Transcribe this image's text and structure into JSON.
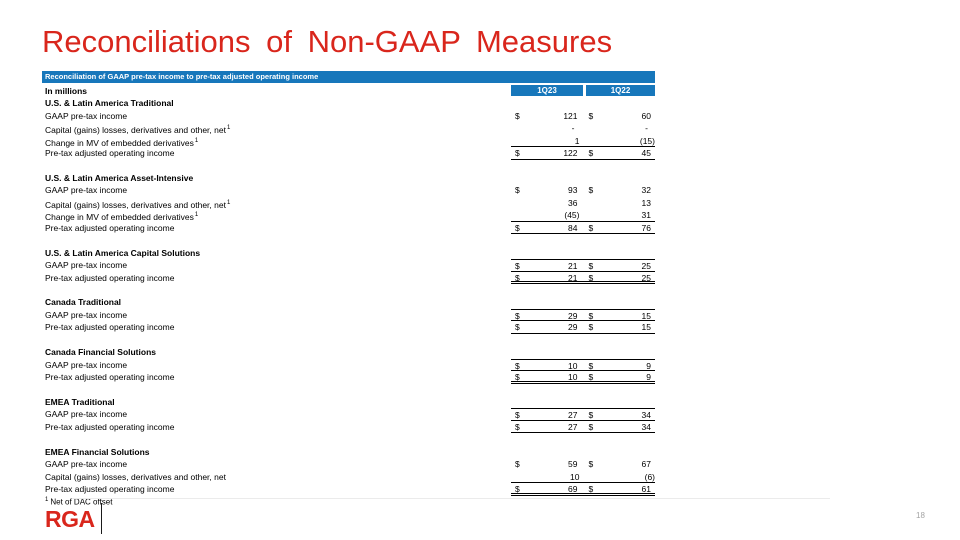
{
  "slide": {
    "title": "Reconciliations of Non-GAAP Measures",
    "page_number": "18",
    "logo_text": "RGA"
  },
  "colors": {
    "accent_red": "#D9261C",
    "header_blue": "#1777BB"
  },
  "table": {
    "header_bar": "Reconciliation of GAAP pre-tax income to pre-tax adjusted operating income",
    "units_label": "In millions",
    "columns": [
      "1Q23",
      "1Q22"
    ],
    "footnote_marker": "1",
    "footnote_text": "Net of DAC offset",
    "sections": [
      {
        "name": "U.S. & Latin America Traditional",
        "rows": [
          {
            "label": "GAAP pre-tax income",
            "sup": false,
            "dollar": true,
            "v1": "121",
            "v2": "60",
            "borders": []
          },
          {
            "label": "Capital (gains) losses, derivatives and other, net",
            "sup": true,
            "dollar": false,
            "v1": "-",
            "v2": "-",
            "borders": []
          },
          {
            "label": "Change in MV of embedded derivatives",
            "sup": true,
            "dollar": false,
            "v1": "1",
            "v2": "(15)",
            "borders": [
              "bottom"
            ]
          },
          {
            "label": "Pre-tax adjusted operating income",
            "sup": false,
            "dollar": true,
            "v1": "122",
            "v2": "45",
            "borders": [
              "bottom"
            ]
          }
        ]
      },
      {
        "name": "U.S. & Latin America Asset-Intensive",
        "rows": [
          {
            "label": "GAAP pre-tax income",
            "sup": false,
            "dollar": true,
            "v1": "93",
            "v2": "32",
            "borders": []
          },
          {
            "label": "Capital (gains) losses, derivatives and other, net",
            "sup": true,
            "dollar": false,
            "v1": "36",
            "v2": "13",
            "borders": []
          },
          {
            "label": "Change in MV of embedded derivatives",
            "sup": true,
            "dollar": false,
            "v1": "(45)",
            "v2": "31",
            "borders": [
              "bottom"
            ]
          },
          {
            "label": "Pre-tax adjusted operating income",
            "sup": false,
            "dollar": true,
            "v1": "84",
            "v2": "76",
            "borders": [
              "bottom"
            ]
          }
        ]
      },
      {
        "name": "U.S. & Latin America Capital Solutions",
        "rows": [
          {
            "label": "GAAP pre-tax income",
            "sup": false,
            "dollar": true,
            "v1": "21",
            "v2": "25",
            "borders": [
              "top",
              "bottom"
            ]
          },
          {
            "label": "Pre-tax adjusted operating income",
            "sup": false,
            "dollar": true,
            "v1": "21",
            "v2": "25",
            "borders": [
              "double"
            ]
          }
        ]
      },
      {
        "name": "Canada Traditional",
        "rows": [
          {
            "label": "GAAP pre-tax income",
            "sup": false,
            "dollar": true,
            "v1": "29",
            "v2": "15",
            "borders": [
              "top",
              "bottom"
            ]
          },
          {
            "label": "Pre-tax adjusted operating income",
            "sup": false,
            "dollar": true,
            "v1": "29",
            "v2": "15",
            "borders": [
              "bottom"
            ]
          }
        ]
      },
      {
        "name": "Canada Financial Solutions",
        "rows": [
          {
            "label": "GAAP pre-tax income",
            "sup": false,
            "dollar": true,
            "v1": "10",
            "v2": "9",
            "borders": [
              "top",
              "bottom"
            ]
          },
          {
            "label": "Pre-tax adjusted operating income",
            "sup": false,
            "dollar": true,
            "v1": "10",
            "v2": "9",
            "borders": [
              "double"
            ]
          }
        ]
      },
      {
        "name": "EMEA Traditional",
        "rows": [
          {
            "label": "GAAP pre-tax income",
            "sup": false,
            "dollar": true,
            "v1": "27",
            "v2": "34",
            "borders": [
              "top",
              "bottom"
            ]
          },
          {
            "label": "Pre-tax adjusted operating income",
            "sup": false,
            "dollar": true,
            "v1": "27",
            "v2": "34",
            "borders": [
              "bottom"
            ]
          }
        ]
      },
      {
        "name": "EMEA Financial Solutions",
        "rows": [
          {
            "label": "GAAP pre-tax income",
            "sup": false,
            "dollar": true,
            "v1": "59",
            "v2": "67",
            "borders": []
          },
          {
            "label": "Capital (gains) losses, derivatives and other, net",
            "sup": false,
            "dollar": false,
            "v1": "10",
            "v2": "(6)",
            "borders": [
              "bottom"
            ]
          },
          {
            "label": "Pre-tax adjusted operating income",
            "sup": false,
            "dollar": true,
            "v1": "69",
            "v2": "61",
            "borders": [
              "double"
            ]
          }
        ]
      }
    ]
  }
}
